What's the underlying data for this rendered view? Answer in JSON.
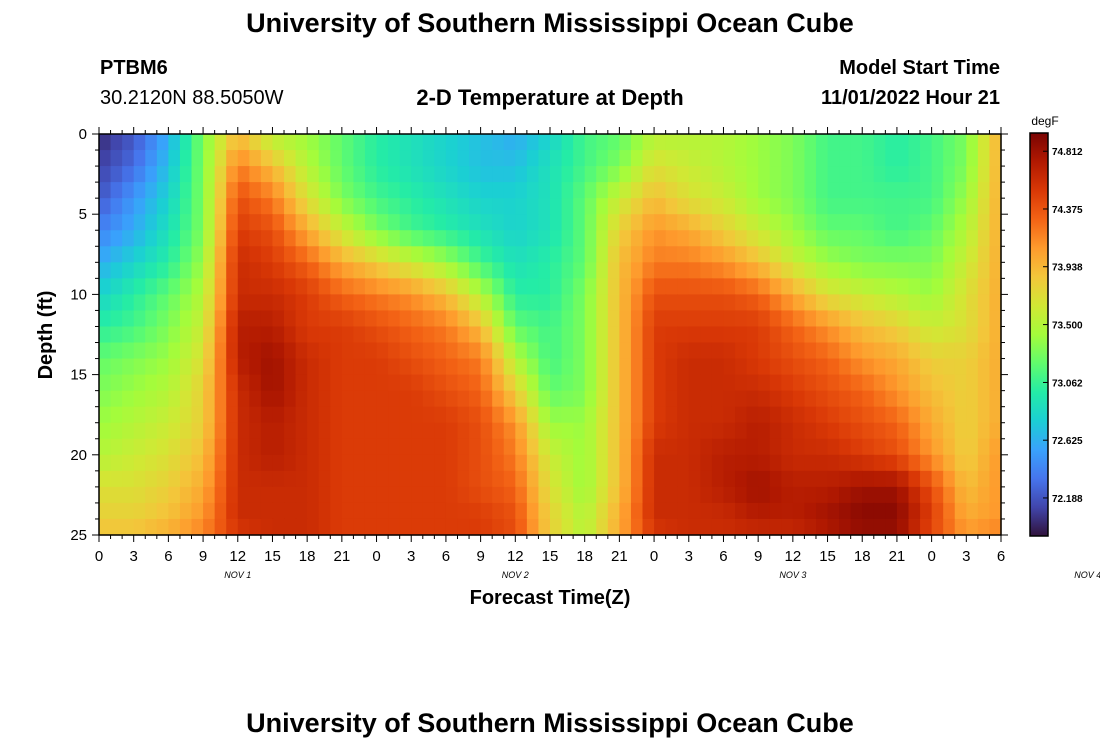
{
  "header": {
    "title": "University of Southern Mississippi Ocean Cube",
    "station_id": "PTBM6",
    "coordinates": "30.2120N  88.5050W",
    "plot_title": "2-D Temperature at Depth",
    "model_start_label": "Model Start Time",
    "model_start_value": "11/01/2022 Hour 21"
  },
  "footer": {
    "title": "University of Southern Mississippi Ocean Cube"
  },
  "chart_data": {
    "type": "heatmap",
    "title": "2-D Temperature at Depth",
    "xlabel": "Forecast Time(Z)",
    "ylabel": "Depth (ft)",
    "x_ticks": [
      "0",
      "3",
      "6",
      "9",
      "12",
      "15",
      "18",
      "21",
      "0",
      "3",
      "6",
      "9",
      "12",
      "15",
      "18",
      "21",
      "0",
      "3",
      "6",
      "9",
      "12",
      "15",
      "18",
      "21",
      "0",
      "3",
      "6"
    ],
    "day_labels": [
      "NOV 1",
      "NOV 2",
      "NOV 3",
      "NOV 4"
    ],
    "y_ticks": [
      0,
      5,
      10,
      15,
      20,
      25
    ],
    "ylim": [
      0,
      25
    ],
    "xlim_hours": [
      0,
      78
    ],
    "colorbar": {
      "unit": "degF",
      "ticks": [
        74.812,
        74.375,
        73.938,
        73.5,
        73.062,
        72.625,
        72.188
      ],
      "range": [
        71.9,
        74.95
      ],
      "colormap": [
        "#30123b",
        "#4145ab",
        "#4675ed",
        "#39a2fc",
        "#1bcfd4",
        "#24eca6",
        "#61fc6c",
        "#a4fc3b",
        "#d1e834",
        "#f3c63a",
        "#fe9b2d",
        "#f36315",
        "#d93806",
        "#b11901",
        "#7a0403"
      ]
    },
    "depths_ft": [
      0,
      2,
      4,
      6,
      8,
      10,
      12,
      14,
      16,
      18,
      20,
      22,
      24,
      25
    ],
    "hours": [
      0,
      3,
      6,
      9,
      12,
      15,
      18,
      21,
      24,
      27,
      30,
      33,
      36,
      39,
      42,
      45,
      48,
      51,
      54,
      57,
      60,
      63,
      66,
      69,
      72,
      75,
      78
    ],
    "values": [
      [
        72.0,
        72.2,
        72.6,
        73.3,
        73.9,
        73.5,
        73.4,
        73.2,
        73.0,
        72.9,
        72.8,
        72.7,
        72.6,
        72.8,
        73.1,
        73.2,
        73.5,
        73.5,
        73.5,
        73.4,
        73.3,
        73.1,
        73.1,
        73.0,
        73.1,
        73.3,
        74.0
      ],
      [
        72.1,
        72.3,
        72.7,
        73.3,
        74.2,
        73.9,
        73.5,
        73.2,
        73.0,
        72.9,
        72.8,
        72.7,
        72.7,
        72.9,
        73.1,
        73.3,
        73.7,
        73.6,
        73.5,
        73.4,
        73.3,
        73.1,
        73.1,
        73.0,
        73.1,
        73.3,
        74.0
      ],
      [
        72.2,
        72.5,
        72.8,
        73.3,
        74.4,
        74.2,
        73.7,
        73.3,
        73.1,
        73.0,
        72.9,
        72.8,
        72.8,
        72.9,
        73.2,
        73.6,
        73.9,
        73.7,
        73.6,
        73.4,
        73.3,
        73.1,
        73.1,
        73.1,
        73.1,
        73.4,
        74.0
      ],
      [
        72.4,
        72.6,
        72.9,
        73.3,
        74.5,
        74.4,
        74.0,
        73.6,
        73.3,
        73.1,
        73.0,
        72.9,
        72.8,
        72.9,
        73.2,
        73.8,
        74.1,
        74.0,
        73.8,
        73.6,
        73.4,
        73.2,
        73.2,
        73.1,
        73.2,
        73.5,
        74.0
      ],
      [
        72.6,
        72.8,
        73.0,
        73.4,
        74.6,
        74.5,
        74.3,
        74.0,
        73.8,
        73.6,
        73.4,
        73.1,
        72.9,
        73.0,
        73.2,
        73.9,
        74.2,
        74.2,
        74.1,
        73.9,
        73.6,
        73.4,
        73.3,
        73.3,
        73.3,
        73.6,
        74.0
      ],
      [
        72.8,
        73.0,
        73.2,
        73.5,
        74.6,
        74.6,
        74.5,
        74.3,
        74.2,
        74.1,
        73.9,
        73.5,
        73.0,
        73.0,
        73.3,
        73.9,
        74.4,
        74.4,
        74.4,
        74.3,
        74.0,
        73.7,
        73.6,
        73.5,
        73.4,
        73.7,
        74.0
      ],
      [
        73.0,
        73.1,
        73.3,
        73.6,
        74.7,
        74.7,
        74.5,
        74.5,
        74.4,
        74.3,
        74.2,
        73.9,
        73.2,
        73.1,
        73.3,
        73.9,
        74.5,
        74.5,
        74.5,
        74.5,
        74.3,
        74.1,
        73.9,
        73.8,
        73.6,
        73.7,
        74.0
      ],
      [
        73.2,
        73.3,
        73.4,
        73.7,
        74.7,
        74.8,
        74.6,
        74.5,
        74.5,
        74.4,
        74.3,
        74.2,
        73.5,
        73.1,
        73.3,
        73.9,
        74.5,
        74.6,
        74.6,
        74.5,
        74.4,
        74.3,
        74.1,
        74.0,
        73.8,
        73.8,
        74.0
      ],
      [
        73.3,
        73.4,
        73.5,
        73.8,
        74.6,
        74.8,
        74.6,
        74.5,
        74.5,
        74.5,
        74.4,
        74.3,
        73.8,
        73.2,
        73.3,
        73.9,
        74.5,
        74.6,
        74.6,
        74.6,
        74.5,
        74.4,
        74.3,
        74.1,
        73.9,
        73.8,
        74.0
      ],
      [
        73.4,
        73.5,
        73.6,
        73.8,
        74.6,
        74.7,
        74.6,
        74.5,
        74.5,
        74.5,
        74.5,
        74.4,
        74.1,
        73.4,
        73.4,
        73.9,
        74.5,
        74.6,
        74.6,
        74.7,
        74.6,
        74.5,
        74.4,
        74.3,
        74.0,
        73.8,
        74.0
      ],
      [
        73.5,
        73.6,
        73.7,
        73.9,
        74.6,
        74.7,
        74.6,
        74.5,
        74.5,
        74.5,
        74.5,
        74.4,
        74.2,
        73.6,
        73.4,
        73.9,
        74.6,
        74.6,
        74.7,
        74.7,
        74.6,
        74.6,
        74.5,
        74.4,
        74.1,
        73.8,
        74.1
      ],
      [
        73.7,
        73.7,
        73.8,
        74.0,
        74.6,
        74.6,
        74.6,
        74.5,
        74.5,
        74.5,
        74.5,
        74.4,
        74.3,
        73.7,
        73.4,
        73.9,
        74.6,
        74.6,
        74.7,
        74.8,
        74.7,
        74.7,
        74.8,
        74.8,
        74.4,
        73.9,
        74.1
      ],
      [
        73.8,
        73.8,
        73.9,
        74.1,
        74.6,
        74.6,
        74.6,
        74.5,
        74.5,
        74.5,
        74.5,
        74.5,
        74.4,
        73.8,
        73.5,
        74.0,
        74.6,
        74.6,
        74.6,
        74.7,
        74.7,
        74.8,
        74.9,
        74.9,
        74.5,
        74.0,
        74.1
      ],
      [
        73.9,
        73.9,
        74.0,
        74.2,
        74.5,
        74.6,
        74.6,
        74.5,
        74.5,
        74.5,
        74.5,
        74.5,
        74.4,
        73.8,
        73.5,
        74.0,
        74.5,
        74.6,
        74.6,
        74.6,
        74.6,
        74.7,
        74.8,
        74.8,
        74.4,
        74.1,
        74.2
      ]
    ]
  }
}
